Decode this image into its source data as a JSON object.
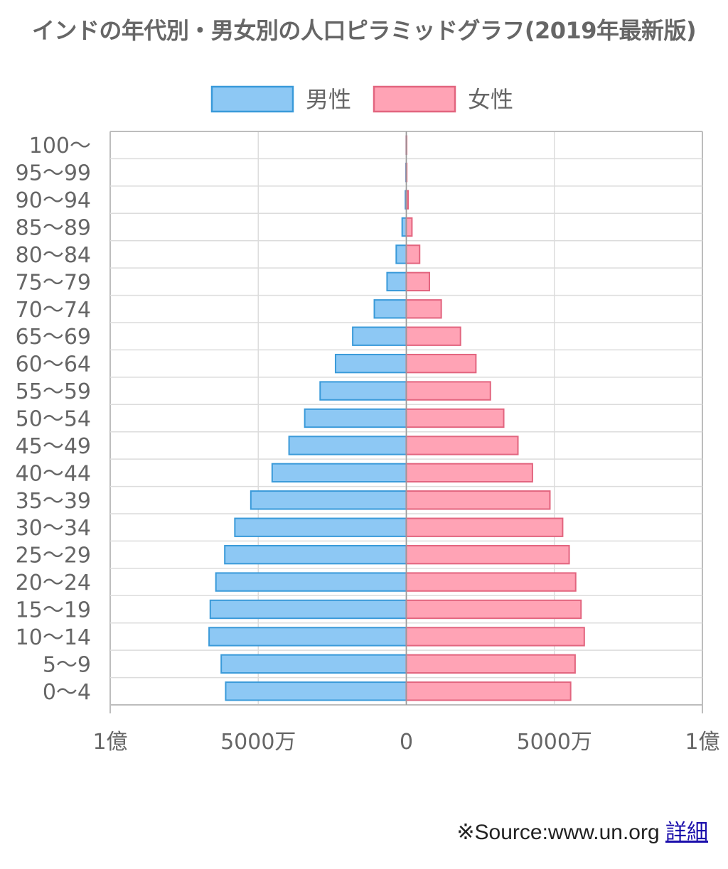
{
  "title": "インドの年代別・男女別の人口ピラミッドグラフ(2019年最新版)",
  "source": {
    "text": "※Source:www.un.org",
    "link_label": "詳細"
  },
  "colors": {
    "male_fill": "#8dc8f4",
    "male_stroke": "#3a9ad9",
    "female_fill": "#ffa3b5",
    "female_stroke": "#e2657f",
    "grid": "#dcdcdc",
    "axis": "#bdbdbd",
    "center": "#999999"
  },
  "chart_data": {
    "type": "bar",
    "orientation": "horizontal",
    "legend": {
      "position": "top",
      "entries": [
        "男性",
        "女性"
      ]
    },
    "categories": [
      "100〜",
      "95〜99",
      "90〜94",
      "85〜89",
      "80〜84",
      "75〜79",
      "70〜74",
      "65〜69",
      "60〜64",
      "55〜59",
      "50〜54",
      "45〜49",
      "40〜44",
      "35〜39",
      "30〜34",
      "25〜29",
      "20〜24",
      "15〜19",
      "10〜14",
      "5〜9",
      "0〜4"
    ],
    "series": [
      {
        "name": "男性",
        "side": "left",
        "values": [
          0.02,
          0.1,
          0.3,
          1.4,
          3.4,
          6.5,
          10.8,
          18.1,
          23.9,
          29.1,
          34.3,
          39.6,
          45.3,
          52.5,
          57.9,
          61.3,
          64.3,
          66.2,
          66.6,
          62.5,
          61.0
        ]
      },
      {
        "name": "女性",
        "side": "right",
        "values": [
          0.03,
          0.15,
          0.6,
          1.9,
          4.5,
          7.8,
          11.8,
          18.3,
          23.5,
          28.4,
          32.9,
          37.7,
          42.6,
          48.5,
          52.8,
          55.0,
          57.2,
          59.0,
          60.1,
          57.0,
          55.5
        ]
      }
    ],
    "value_unit": "百万人",
    "xlim": [
      -100,
      100
    ],
    "xticks": [
      {
        "value": -100,
        "label": "1億"
      },
      {
        "value": -50,
        "label": "5000万"
      },
      {
        "value": 0,
        "label": "0"
      },
      {
        "value": 50,
        "label": "5000万"
      },
      {
        "value": 100,
        "label": "1億"
      }
    ],
    "grid": true
  }
}
